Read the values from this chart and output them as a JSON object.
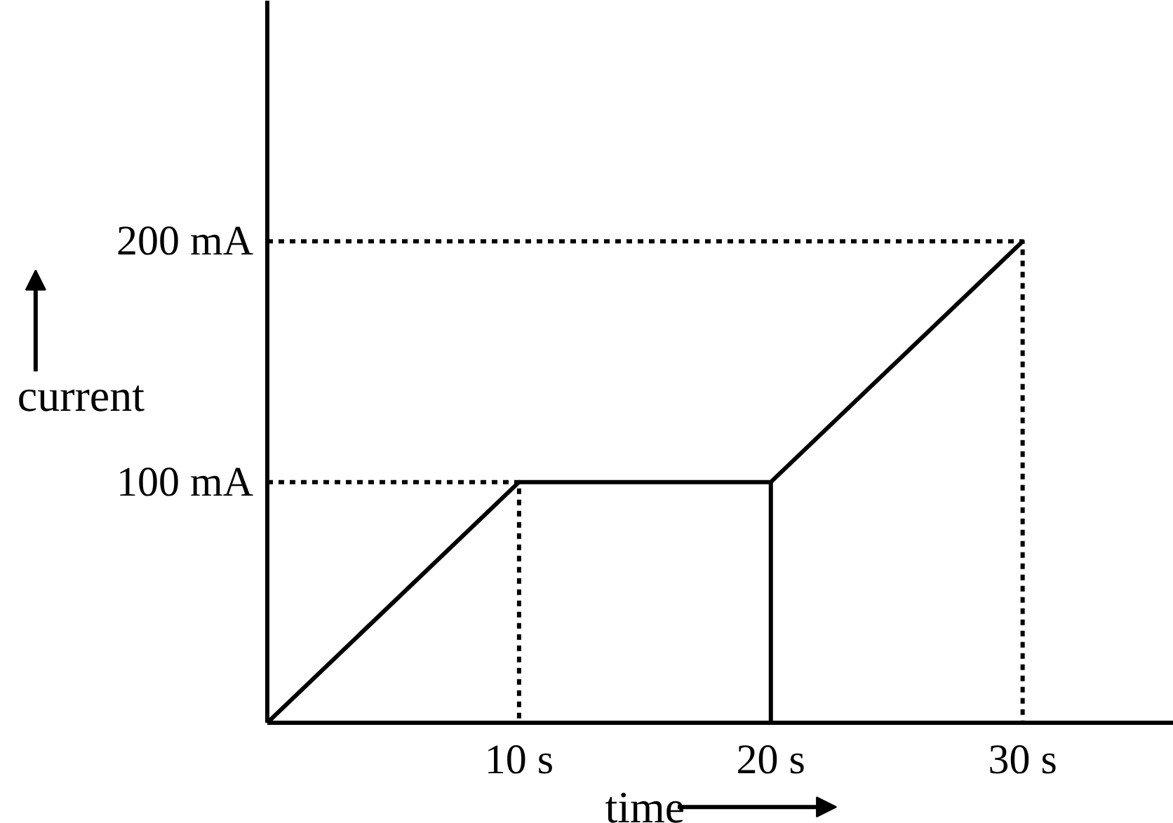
{
  "chart_data": {
    "type": "line",
    "xlabel": "time",
    "ylabel": "current",
    "xlim": [
      0,
      36
    ],
    "ylim": [
      0,
      300
    ],
    "xticks": [
      {
        "value": 10,
        "label": "10 s"
      },
      {
        "value": 20,
        "label": "20 s"
      },
      {
        "value": 30,
        "label": "30 s"
      }
    ],
    "yticks": [
      {
        "value": 100,
        "label": "100 mA"
      },
      {
        "value": 200,
        "label": "200 mA"
      }
    ],
    "series": [
      {
        "color": "#000000",
        "x": [
          0,
          10,
          20,
          30
        ],
        "values": [
          0,
          100,
          100,
          200
        ],
        "line_style": "solid"
      },
      {
        "color": "#000000",
        "x": [
          20,
          20
        ],
        "values": [
          0,
          100
        ],
        "line_style": "solid"
      },
      {
        "color": "#000000",
        "x": [
          0,
          10,
          10
        ],
        "values": [
          100,
          100,
          0
        ],
        "line_style": "dashed"
      },
      {
        "color": "#000000",
        "x": [
          0,
          30,
          30
        ],
        "values": [
          200,
          200,
          0
        ],
        "line_style": "dashed"
      }
    ]
  }
}
